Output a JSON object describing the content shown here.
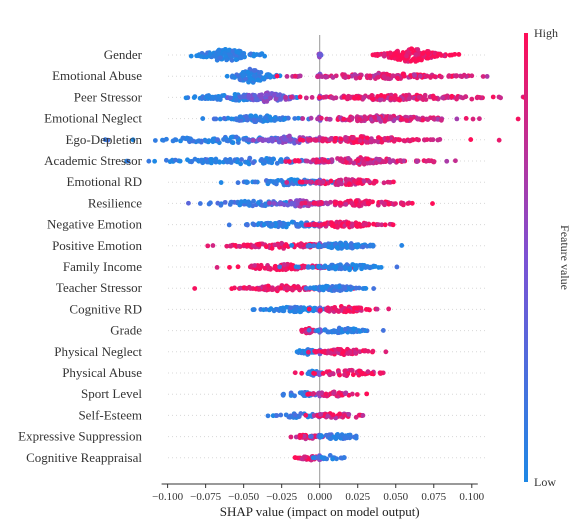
{
  "chart_data": {
    "type": "scatter",
    "subtype": "shap-beeswarm",
    "title": "",
    "xlabel": "SHAP value (impact on model output)",
    "xlim": [
      -0.105,
      0.11
    ],
    "xticks": [
      -0.1,
      -0.075,
      -0.05,
      -0.025,
      0.0,
      0.025,
      0.05,
      0.075,
      0.1
    ],
    "xtick_labels": [
      "−0.100",
      "−0.075",
      "−0.050",
      "−0.025",
      "0.000",
      "0.025",
      "0.050",
      "0.075",
      "0.100"
    ],
    "zero_line": true,
    "colorbar": {
      "label": "Feature value",
      "high_label": "High",
      "low_label": "Low",
      "low_color": "#1e88e5",
      "high_color": "#ff0d57"
    },
    "features": [
      {
        "name": "Gender",
        "clusters": [
          {
            "center": -0.062,
            "spread": 0.022,
            "n": 110,
            "height": 0.85,
            "fv": 0.02,
            "outliers": [
              -0.078,
              -0.072,
              -0.038
            ]
          },
          {
            "center": 0.06,
            "spread": 0.024,
            "n": 130,
            "height": 0.85,
            "fv": 0.98,
            "outliers": [
              0.035,
              0.038,
              0.08
            ]
          },
          {
            "center": 0.0,
            "spread": 0.001,
            "n": 8,
            "height": 0.3,
            "fv": 0.5
          }
        ]
      },
      {
        "name": "Emotional Abuse",
        "clusters": [
          {
            "center": -0.045,
            "spread": 0.016,
            "n": 90,
            "height": 0.85,
            "fv": 0.05,
            "outliers": [
              -0.056,
              -0.05
            ]
          },
          {
            "center": 0.0,
            "spread": 0.001,
            "n": 6,
            "height": 0.3,
            "fv": 0.4
          },
          {
            "center": 0.04,
            "spread": 0.06,
            "n": 120,
            "height": 0.35,
            "fv": 0.85,
            "outliers": [
              0.08,
              0.085,
              0.09,
              0.095,
              0.1
            ]
          }
        ]
      },
      {
        "name": "Peer Stressor",
        "clusters": [
          {
            "center": -0.055,
            "spread": 0.04,
            "n": 90,
            "height": 0.35,
            "fv": 0.06,
            "outliers": [
              -0.073,
              -0.07,
              -0.066
            ]
          },
          {
            "center": -0.035,
            "spread": 0.025,
            "n": 70,
            "height": 0.55,
            "fv": 0.45
          },
          {
            "center": 0.0,
            "spread": 0.001,
            "n": 6,
            "height": 0.3,
            "fv": 0.5
          },
          {
            "center": 0.05,
            "spread": 0.07,
            "n": 150,
            "height": 0.35,
            "fv": 0.88,
            "outliers": [
              0.09,
              0.1,
              0.105
            ]
          }
        ]
      },
      {
        "name": "Emotional Neglect",
        "clusters": [
          {
            "center": -0.04,
            "spread": 0.03,
            "n": 90,
            "height": 0.4,
            "fv": 0.08
          },
          {
            "center": 0.0,
            "spread": 0.001,
            "n": 6,
            "height": 0.3,
            "fv": 0.5
          },
          {
            "center": 0.04,
            "spread": 0.06,
            "n": 130,
            "height": 0.35,
            "fv": 0.82,
            "outliers": [
              0.075,
              0.08,
              0.105
            ]
          }
        ]
      },
      {
        "name": "Ego-Depletion",
        "clusters": [
          {
            "center": -0.06,
            "spread": 0.08,
            "n": 90,
            "height": 0.35,
            "fv": 0.1,
            "outliers": [
              -0.095,
              -0.09,
              -0.085,
              -0.08
            ]
          },
          {
            "center": -0.02,
            "spread": 0.025,
            "n": 60,
            "height": 0.45,
            "fv": 0.5
          },
          {
            "center": 0.0,
            "spread": 0.001,
            "n": 6,
            "height": 0.3,
            "fv": 0.5
          },
          {
            "center": 0.03,
            "spread": 0.05,
            "n": 110,
            "height": 0.4,
            "fv": 0.9,
            "outliers": [
              0.06,
              0.065
            ]
          }
        ]
      },
      {
        "name": "Academic Stressor",
        "clusters": [
          {
            "center": -0.045,
            "spread": 0.08,
            "n": 110,
            "height": 0.35,
            "fv": 0.1,
            "outliers": [
              -0.082,
              -0.078,
              -0.074
            ]
          },
          {
            "center": 0.0,
            "spread": 0.001,
            "n": 6,
            "height": 0.3,
            "fv": 0.5
          },
          {
            "center": 0.025,
            "spread": 0.05,
            "n": 110,
            "height": 0.4,
            "fv": 0.85,
            "outliers": [
              0.07,
              0.072,
              0.075
            ]
          }
        ]
      },
      {
        "name": "Emotional RD",
        "clusters": [
          {
            "center": -0.02,
            "spread": 0.04,
            "n": 80,
            "height": 0.35,
            "fv": 0.08
          },
          {
            "center": 0.0,
            "spread": 0.001,
            "n": 6,
            "height": 0.3,
            "fv": 0.5
          },
          {
            "center": 0.018,
            "spread": 0.035,
            "n": 80,
            "height": 0.35,
            "fv": 0.9
          }
        ]
      },
      {
        "name": "Resilience",
        "clusters": [
          {
            "center": -0.04,
            "spread": 0.05,
            "n": 60,
            "height": 0.3,
            "fv": 0.15,
            "outliers": [
              -0.065,
              -0.058
            ]
          },
          {
            "center": -0.012,
            "spread": 0.02,
            "n": 50,
            "height": 0.4,
            "fv": 0.55
          },
          {
            "center": 0.0,
            "spread": 0.001,
            "n": 6,
            "height": 0.3,
            "fv": 0.5
          },
          {
            "center": 0.025,
            "spread": 0.04,
            "n": 80,
            "height": 0.35,
            "fv": 0.92,
            "outliers": [
              0.055,
              0.058
            ]
          }
        ]
      },
      {
        "name": "Negative Emotion",
        "clusters": [
          {
            "center": -0.02,
            "spread": 0.035,
            "n": 80,
            "height": 0.35,
            "fv": 0.08
          },
          {
            "center": 0.0,
            "spread": 0.001,
            "n": 6,
            "height": 0.3,
            "fv": 0.5
          },
          {
            "center": 0.015,
            "spread": 0.03,
            "n": 80,
            "height": 0.35,
            "fv": 0.95
          }
        ]
      },
      {
        "name": "Positive Emotion",
        "clusters": [
          {
            "center": -0.025,
            "spread": 0.045,
            "n": 90,
            "height": 0.35,
            "fv": 0.95
          },
          {
            "center": 0.0,
            "spread": 0.001,
            "n": 6,
            "height": 0.3,
            "fv": 0.5
          },
          {
            "center": 0.015,
            "spread": 0.03,
            "n": 80,
            "height": 0.35,
            "fv": 0.05
          }
        ]
      },
      {
        "name": "Family Income",
        "clusters": [
          {
            "center": -0.025,
            "spread": 0.04,
            "n": 80,
            "height": 0.35,
            "fv": 0.95,
            "outliers": [
              -0.04,
              -0.036
            ]
          },
          {
            "center": 0.0,
            "spread": 0.001,
            "n": 6,
            "height": 0.3,
            "fv": 0.5
          },
          {
            "center": 0.018,
            "spread": 0.03,
            "n": 80,
            "height": 0.35,
            "fv": 0.05
          }
        ]
      },
      {
        "name": "Teacher Stressor",
        "clusters": [
          {
            "center": -0.025,
            "spread": 0.035,
            "n": 80,
            "height": 0.35,
            "fv": 0.92,
            "outliers": [
              -0.048,
              -0.04,
              -0.036
            ]
          },
          {
            "center": 0.0,
            "spread": 0.001,
            "n": 6,
            "height": 0.3,
            "fv": 0.5
          },
          {
            "center": 0.01,
            "spread": 0.02,
            "n": 70,
            "height": 0.35,
            "fv": 0.08
          }
        ]
      },
      {
        "name": "Cognitive RD",
        "clusters": [
          {
            "center": -0.015,
            "spread": 0.025,
            "n": 60,
            "height": 0.35,
            "fv": 0.08,
            "outliers": [
              -0.03
            ]
          },
          {
            "center": 0.0,
            "spread": 0.001,
            "n": 6,
            "height": 0.3,
            "fv": 0.5
          },
          {
            "center": 0.015,
            "spread": 0.025,
            "n": 60,
            "height": 0.35,
            "fv": 0.92
          }
        ]
      },
      {
        "name": "Grade",
        "clusters": [
          {
            "center": -0.008,
            "spread": 0.006,
            "n": 30,
            "height": 0.35,
            "fv": 0.95
          },
          {
            "center": 0.0,
            "spread": 0.001,
            "n": 6,
            "height": 0.3,
            "fv": 0.5
          },
          {
            "center": 0.015,
            "spread": 0.02,
            "n": 50,
            "height": 0.35,
            "fv": 0.05
          }
        ]
      },
      {
        "name": "Physical Neglect",
        "clusters": [
          {
            "center": -0.008,
            "spread": 0.012,
            "n": 30,
            "height": 0.3,
            "fv": 0.08
          },
          {
            "center": 0.0,
            "spread": 0.001,
            "n": 6,
            "height": 0.3,
            "fv": 0.5
          },
          {
            "center": 0.015,
            "spread": 0.025,
            "n": 60,
            "height": 0.35,
            "fv": 0.92,
            "outliers": [
              0.03,
              0.035
            ]
          }
        ]
      },
      {
        "name": "Physical Abuse",
        "clusters": [
          {
            "center": -0.004,
            "spread": 0.006,
            "n": 30,
            "height": 0.3,
            "fv": 0.06
          },
          {
            "center": 0.0,
            "spread": 0.001,
            "n": 6,
            "height": 0.3,
            "fv": 0.5
          },
          {
            "center": 0.018,
            "spread": 0.03,
            "n": 60,
            "height": 0.35,
            "fv": 0.95,
            "outliers": [
              0.04
            ]
          }
        ]
      },
      {
        "name": "Sport Level",
        "clusters": [
          {
            "center": -0.012,
            "spread": 0.015,
            "n": 30,
            "height": 0.3,
            "fv": 0.12,
            "outliers": [
              -0.024
            ]
          },
          {
            "center": 0.0,
            "spread": 0.001,
            "n": 6,
            "height": 0.3,
            "fv": 0.5
          },
          {
            "center": 0.01,
            "spread": 0.02,
            "n": 40,
            "height": 0.3,
            "fv": 0.85
          }
        ]
      },
      {
        "name": "Self-Esteem",
        "clusters": [
          {
            "center": -0.015,
            "spread": 0.02,
            "n": 30,
            "height": 0.3,
            "fv": 0.1,
            "outliers": [
              -0.034,
              -0.022
            ]
          },
          {
            "center": 0.0,
            "spread": 0.001,
            "n": 6,
            "height": 0.3,
            "fv": 0.5
          },
          {
            "center": 0.01,
            "spread": 0.02,
            "n": 40,
            "height": 0.3,
            "fv": 0.85,
            "outliers": [
              0.024
            ]
          }
        ]
      },
      {
        "name": "Expressive Suppression",
        "clusters": [
          {
            "center": -0.008,
            "spread": 0.012,
            "n": 30,
            "height": 0.3,
            "fv": 0.9
          },
          {
            "center": 0.0,
            "spread": 0.001,
            "n": 6,
            "height": 0.3,
            "fv": 0.5
          },
          {
            "center": 0.012,
            "spread": 0.02,
            "n": 40,
            "height": 0.3,
            "fv": 0.1,
            "outliers": [
              0.02,
              0.024
            ]
          }
        ]
      },
      {
        "name": "Cognitive Reappraisal",
        "clusters": [
          {
            "center": -0.007,
            "spread": 0.01,
            "n": 30,
            "height": 0.3,
            "fv": 0.9
          },
          {
            "center": 0.0,
            "spread": 0.001,
            "n": 6,
            "height": 0.3,
            "fv": 0.5
          },
          {
            "center": 0.006,
            "spread": 0.01,
            "n": 20,
            "height": 0.3,
            "fv": 0.1,
            "outliers": [
              0.016
            ]
          }
        ]
      }
    ]
  }
}
